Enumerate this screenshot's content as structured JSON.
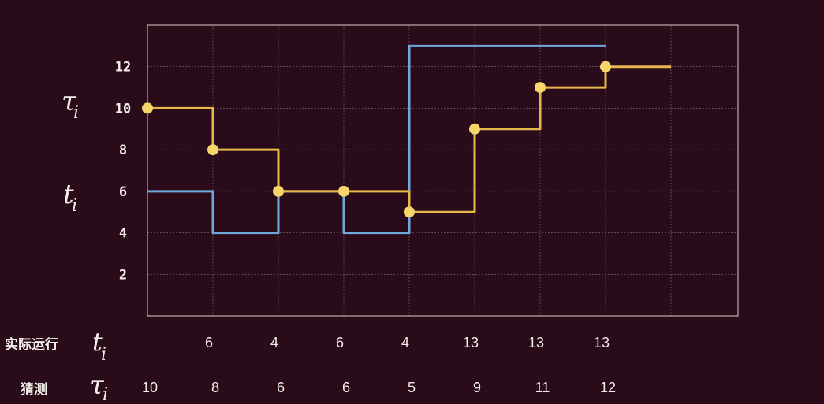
{
  "chart_data": {
    "type": "line",
    "step": true,
    "ylim": [
      0,
      14
    ],
    "y_ticks": [
      "2",
      "4",
      "6",
      "8",
      "10",
      "12"
    ],
    "grid": true,
    "series": [
      {
        "name": "t_i (实际运行)",
        "color": "#6fa8dc",
        "values": [
          6,
          4,
          6,
          4,
          13,
          13,
          13
        ]
      },
      {
        "name": "τ_i (猜测)",
        "color": "#e6b84a",
        "values": [
          10,
          8,
          6,
          6,
          5,
          9,
          11,
          12,
          12
        ]
      }
    ],
    "left_labels": {
      "tau": "τ",
      "tau_sub": "i",
      "t": "t",
      "t_sub": "i"
    }
  },
  "table": {
    "actual_label": "实际运行",
    "guess_label": "猜测",
    "actual_values": [
      "6",
      "4",
      "6",
      "4",
      "13",
      "13",
      "13"
    ],
    "guess_values": [
      "10",
      "8",
      "6",
      "6",
      "5",
      "9",
      "11",
      "12"
    ]
  },
  "colors": {
    "background": "#2a0b1a",
    "blue": "#6fa8dc",
    "yellow": "#e6b84a",
    "marker": "#f6d66a"
  }
}
